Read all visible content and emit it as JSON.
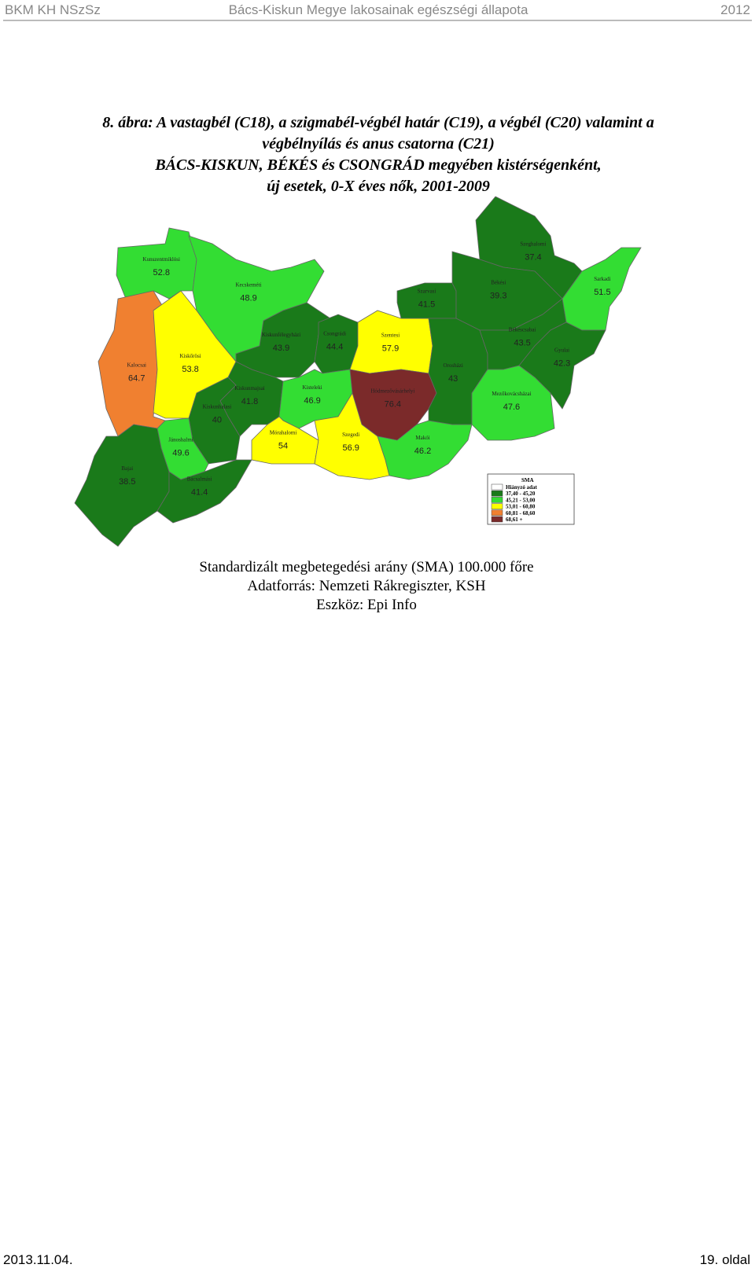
{
  "header": {
    "left": "BKM KH NSzSz",
    "center": "Bács-Kiskun Megye lakosainak egészségi állapota",
    "right": "2012"
  },
  "figure": {
    "title_lines": [
      "8. ábra: A vastagbél (C18), a szigmabél-végbél határ (C19), a végbél (C20) valamint a",
      "végbélnyílás és anus csatorna (C21)",
      "BÁCS-KISKUN, BÉKÉS és CSONGRÁD megyében kistérségenként,",
      "új esetek, 0-X éves nők, 2001-2009"
    ],
    "regions": [
      {
        "name": "Kunszentmiklósi",
        "value": 52.8,
        "color": "#33dd33"
      },
      {
        "name": "Kecskeméti",
        "value": 48.9,
        "color": "#33dd33"
      },
      {
        "name": "Kalocsai",
        "value": 64.7,
        "color": "#f08030"
      },
      {
        "name": "Kiskőrösi",
        "value": 53.8,
        "color": "#ffff00"
      },
      {
        "name": "Kiskunfélegyházi",
        "value": 43.9,
        "color": "#1a7a1a"
      },
      {
        "name": "Csongrádi",
        "value": 44.4,
        "color": "#1a7a1a"
      },
      {
        "name": "Szentesi",
        "value": 57.9,
        "color": "#ffff00"
      },
      {
        "name": "Kiskunmajsai",
        "value": 41.8,
        "color": "#1a7a1a"
      },
      {
        "name": "Kiskunhalasi",
        "value": 40,
        "color": "#1a7a1a"
      },
      {
        "name": "Kisteleki",
        "value": 46.9,
        "color": "#33dd33"
      },
      {
        "name": "Hódmezővásárhelyi",
        "value": 76.4,
        "color": "#7b2a2a"
      },
      {
        "name": "Mórahalomi",
        "value": 54,
        "color": "#ffff00"
      },
      {
        "name": "Szegedi",
        "value": 56.9,
        "color": "#ffff00"
      },
      {
        "name": "Makói",
        "value": 46.2,
        "color": "#33dd33"
      },
      {
        "name": "Jánoshalmi",
        "value": 49.6,
        "color": "#33dd33"
      },
      {
        "name": "Bajai",
        "value": 38.5,
        "color": "#1a7a1a"
      },
      {
        "name": "Bácsalmási",
        "value": 41.4,
        "color": "#1a7a1a"
      },
      {
        "name": "Szeghalomi",
        "value": 37.4,
        "color": "#1a7a1a"
      },
      {
        "name": "Szarvasi",
        "value": 41.5,
        "color": "#1a7a1a"
      },
      {
        "name": "Békési",
        "value": 39.3,
        "color": "#1a7a1a"
      },
      {
        "name": "Sarkadi",
        "value": 51.5,
        "color": "#33dd33"
      },
      {
        "name": "Orosházi",
        "value": 43,
        "color": "#1a7a1a"
      },
      {
        "name": "Békéscsabai",
        "value": 43.5,
        "color": "#1a7a1a"
      },
      {
        "name": "Gyulai",
        "value": 42.3,
        "color": "#1a7a1a"
      },
      {
        "name": "Mezőkovácsházai",
        "value": 47.6,
        "color": "#33dd33"
      }
    ],
    "legend": {
      "title": "SMA",
      "items": [
        {
          "label": "Hiányzó adat",
          "color": "#ffffff"
        },
        {
          "label": "37,40 - 45,20",
          "color": "#1a7a1a"
        },
        {
          "label": "45,21 - 53,00",
          "color": "#33dd33"
        },
        {
          "label": "53,01 - 60,80",
          "color": "#ffff00"
        },
        {
          "label": "60,81 - 68,60",
          "color": "#f08030"
        },
        {
          "label": "68,61 +",
          "color": "#7b2a2a"
        }
      ]
    },
    "caption_lines": [
      "Standardizált megbetegedési arány (SMA) 100.000 főre",
      "Adatforrás: Nemzeti Rákregiszter, KSH",
      "Eszköz: Epi Info"
    ]
  },
  "footer": {
    "date": "2013.11.04.",
    "page": "19. oldal"
  }
}
